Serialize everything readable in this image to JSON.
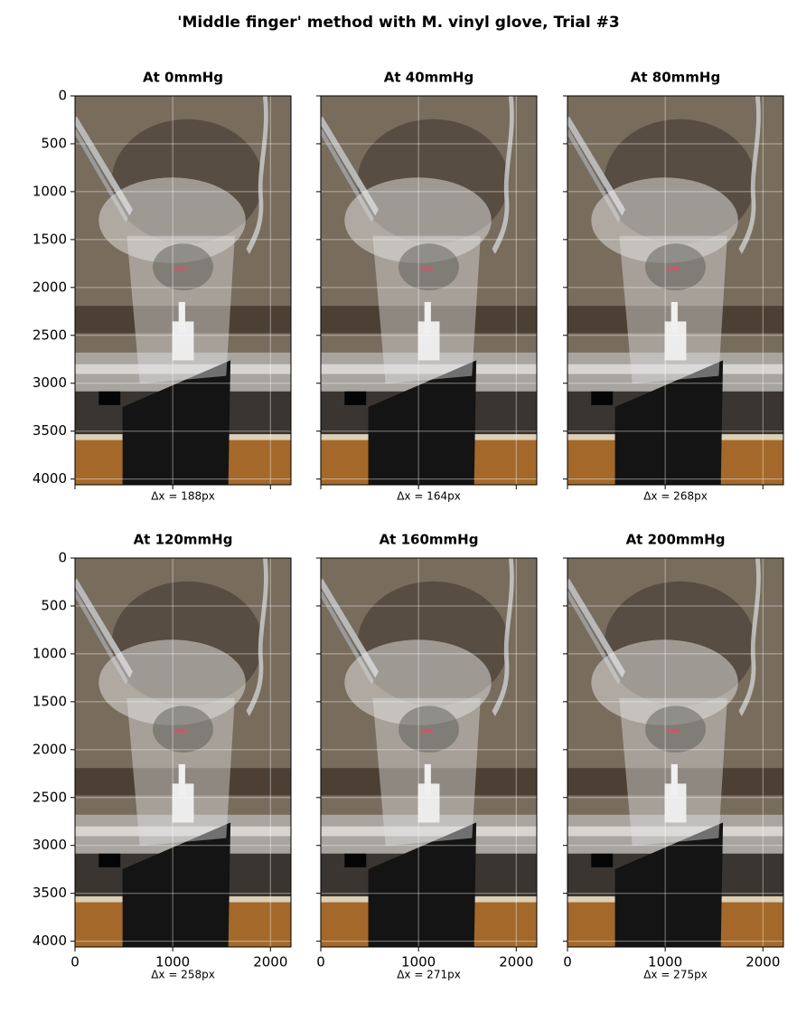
{
  "title": "'Middle finger' method with M. vinyl glove, Trial #3",
  "chart_data": [
    {
      "type": "image",
      "title": "At 0mmHg",
      "xlabel": "Δx = 188px",
      "xlim": [
        0,
        2210
      ],
      "ylim": [
        4060,
        0
      ],
      "xticks": [
        0,
        1000,
        2000
      ],
      "yticks": [
        0,
        500,
        1000,
        1500,
        2000,
        2500,
        3000,
        3500,
        4000
      ],
      "grid": true
    },
    {
      "type": "image",
      "title": "At 40mmHg",
      "xlabel": "Δx = 164px",
      "xlim": [
        0,
        2210
      ],
      "ylim": [
        4060,
        0
      ],
      "xticks": [
        0,
        1000,
        2000
      ],
      "yticks": [
        0,
        500,
        1000,
        1500,
        2000,
        2500,
        3000,
        3500,
        4000
      ],
      "grid": true
    },
    {
      "type": "image",
      "title": "At 80mmHg",
      "xlabel": "Δx = 268px",
      "xlim": [
        0,
        2210
      ],
      "ylim": [
        4060,
        0
      ],
      "xticks": [
        0,
        1000,
        2000
      ],
      "yticks": [
        0,
        500,
        1000,
        1500,
        2000,
        2500,
        3000,
        3500,
        4000
      ],
      "grid": true
    },
    {
      "type": "image",
      "title": "At 120mmHg",
      "xlabel": "Δx = 258px",
      "xlim": [
        0,
        2210
      ],
      "ylim": [
        4060,
        0
      ],
      "xticks": [
        0,
        1000,
        2000
      ],
      "yticks": [
        0,
        500,
        1000,
        1500,
        2000,
        2500,
        3000,
        3500,
        4000
      ],
      "grid": true
    },
    {
      "type": "image",
      "title": "At 160mmHg",
      "xlabel": "Δx = 271px",
      "xlim": [
        0,
        2210
      ],
      "ylim": [
        4060,
        0
      ],
      "xticks": [
        0,
        1000,
        2000
      ],
      "yticks": [
        0,
        500,
        1000,
        1500,
        2000,
        2500,
        3000,
        3500,
        4000
      ],
      "grid": true
    },
    {
      "type": "image",
      "title": "At 200mmHg",
      "xlabel": "Δx = 275px",
      "xlim": [
        0,
        2210
      ],
      "ylim": [
        4060,
        0
      ],
      "xticks": [
        0,
        1000,
        2000
      ],
      "yticks": [
        0,
        500,
        1000,
        1500,
        2000,
        2500,
        3000,
        3500,
        4000
      ],
      "grid": true
    }
  ]
}
